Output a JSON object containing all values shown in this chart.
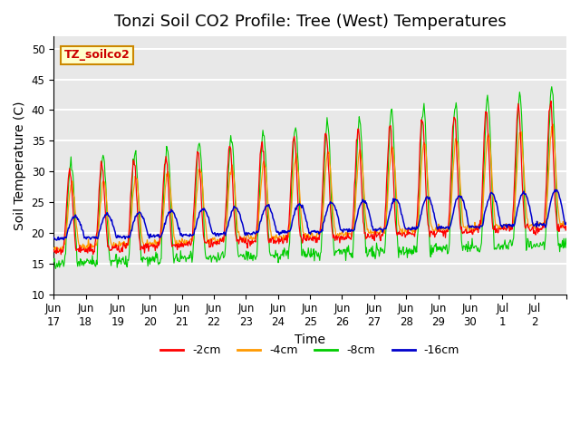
{
  "title": "Tonzi Soil CO2 Profile: Tree (West) Temperatures",
  "xlabel": "Time",
  "ylabel": "Soil Temperature (C)",
  "ylim": [
    10,
    52
  ],
  "yticks": [
    10,
    15,
    20,
    25,
    30,
    35,
    40,
    45,
    50
  ],
  "annotation_text": "TZ_soilco2",
  "annotation_color": "#cc0000",
  "annotation_bg": "#ffffcc",
  "annotation_border": "#cc8800",
  "line_colors": {
    "-2cm": "#ff0000",
    "-4cm": "#ff9900",
    "-8cm": "#00cc00",
    "-16cm": "#0000cc"
  },
  "legend_labels": [
    "-2cm",
    "-4cm",
    "-8cm",
    "-16cm"
  ],
  "xtick_labels": [
    "Jun\n17",
    "Jun\n18",
    "Jun\n19",
    "Jun\n20",
    "Jun\n21",
    "Jun\n22",
    "Jun\n23",
    "Jun\n24",
    "Jun\n25",
    "Jun\n26",
    "Jun\n27",
    "Jun\n28",
    "Jun\n29",
    "Jun\n30",
    "Jul\n1",
    "Jul\n2",
    ""
  ],
  "plot_bg_color": "#e8e8e8",
  "grid_color": "#ffffff",
  "title_fontsize": 13,
  "axis_label_fontsize": 10,
  "tick_fontsize": 8.5
}
